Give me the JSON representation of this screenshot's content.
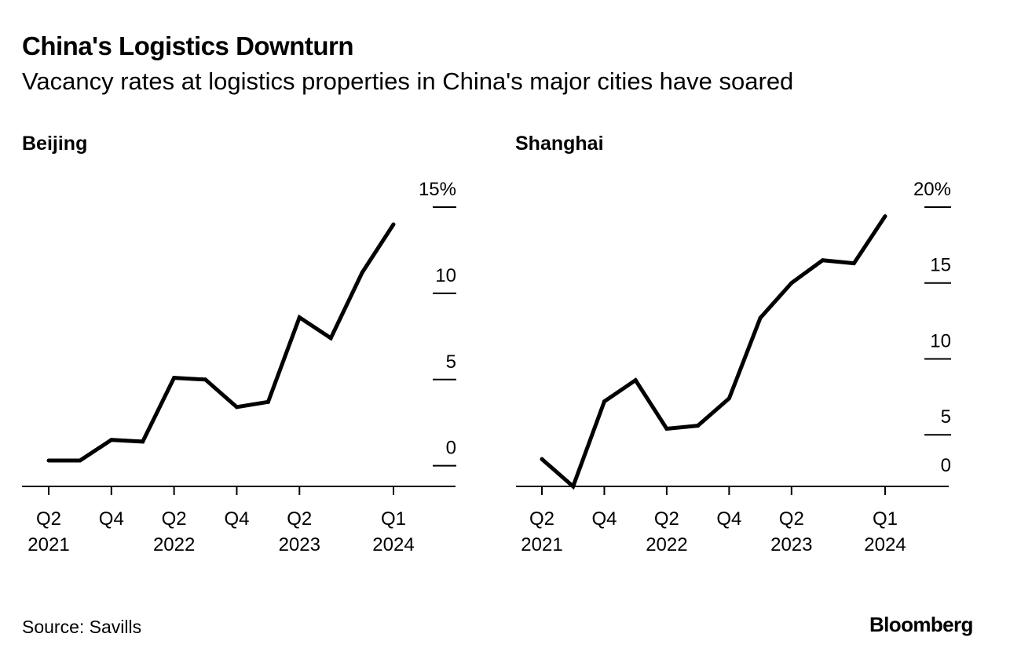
{
  "header": {
    "title": "China's Logistics Downturn",
    "subtitle": "Vacancy rates at logistics properties in China's major cities have soared"
  },
  "footer": {
    "source": "Source: Savills",
    "brand": "Bloomberg"
  },
  "colors": {
    "line": "#000000",
    "background": "#ffffff"
  },
  "chart_data": [
    {
      "type": "line",
      "title": "Beijing",
      "xlabel": "",
      "ylabel": "",
      "unit": "%",
      "x_tick_labels": [
        {
          "quarter": "Q2",
          "year": "2021"
        },
        {
          "quarter": "Q4",
          "year": ""
        },
        {
          "quarter": "Q2",
          "year": "2022"
        },
        {
          "quarter": "Q4",
          "year": ""
        },
        {
          "quarter": "Q2",
          "year": "2023"
        },
        {
          "quarter": "Q1",
          "year": "2024"
        }
      ],
      "x_tick_index": [
        0,
        2,
        4,
        6,
        8,
        11
      ],
      "x": [
        "Q2 2021",
        "Q3 2021",
        "Q4 2021",
        "Q1 2022",
        "Q2 2022",
        "Q3 2022",
        "Q4 2022",
        "Q1 2023",
        "Q2 2023",
        "Q3 2023",
        "Q4 2023",
        "Q1 2024"
      ],
      "values": [
        0.3,
        0.3,
        1.5,
        1.4,
        5.1,
        5.0,
        3.4,
        3.7,
        8.6,
        7.4,
        11.2,
        14.0
      ],
      "ylim": [
        -1.2,
        15
      ],
      "yticks": [
        0,
        5,
        10,
        15
      ],
      "ytick_labels": [
        "0",
        "5",
        "10",
        "15%"
      ],
      "grid": false,
      "legend": "none"
    },
    {
      "type": "line",
      "title": "Shanghai",
      "xlabel": "",
      "ylabel": "",
      "unit": "%",
      "x_tick_labels": [
        {
          "quarter": "Q2",
          "year": "2021"
        },
        {
          "quarter": "Q4",
          "year": ""
        },
        {
          "quarter": "Q2",
          "year": "2022"
        },
        {
          "quarter": "Q4",
          "year": ""
        },
        {
          "quarter": "Q2",
          "year": "2023"
        },
        {
          "quarter": "Q1",
          "year": "2024"
        }
      ],
      "x_tick_index": [
        0,
        2,
        4,
        6,
        8,
        11
      ],
      "x": [
        "Q2 2021",
        "Q3 2021",
        "Q4 2021",
        "Q1 2022",
        "Q2 2022",
        "Q3 2022",
        "Q4 2022",
        "Q1 2023",
        "Q2 2023",
        "Q3 2023",
        "Q4 2023",
        "Q1 2024"
      ],
      "values": [
        3.4,
        1.6,
        7.2,
        8.6,
        5.4,
        5.6,
        7.4,
        12.7,
        15.0,
        16.5,
        16.3,
        19.4
      ],
      "ylim": [
        1.6,
        20
      ],
      "yticks": [
        5,
        10,
        15,
        20
      ],
      "ytick_labels": [
        "5",
        "10",
        "15",
        "20%"
      ],
      "baseline_label": "0",
      "grid": false,
      "legend": "none"
    }
  ]
}
